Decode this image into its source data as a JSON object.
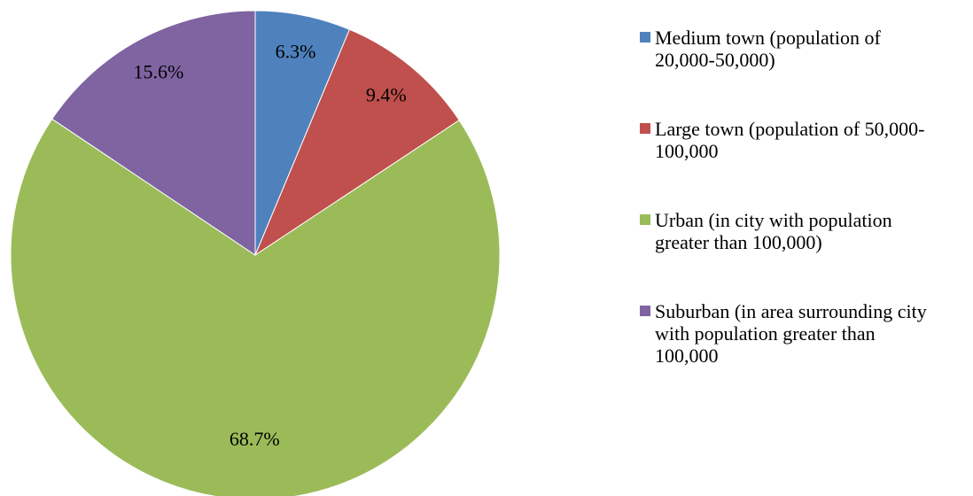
{
  "chart_data": {
    "type": "pie",
    "categories": [
      "Medium town (population of 20,000-50,000)",
      "Large town (population of 50,000-100,000",
      "Urban (in city with population greater than 100,000)",
      "Suburban (in area surrounding city with population greater than 100,000"
    ],
    "values": [
      6.3,
      9.4,
      68.7,
      15.6
    ],
    "value_labels": [
      "6.3%",
      "9.4%",
      "68.7%",
      "15.6%"
    ],
    "colors": [
      "#4f81bd",
      "#c0504d",
      "#9bbb59",
      "#8064a2"
    ],
    "legend": "right"
  }
}
